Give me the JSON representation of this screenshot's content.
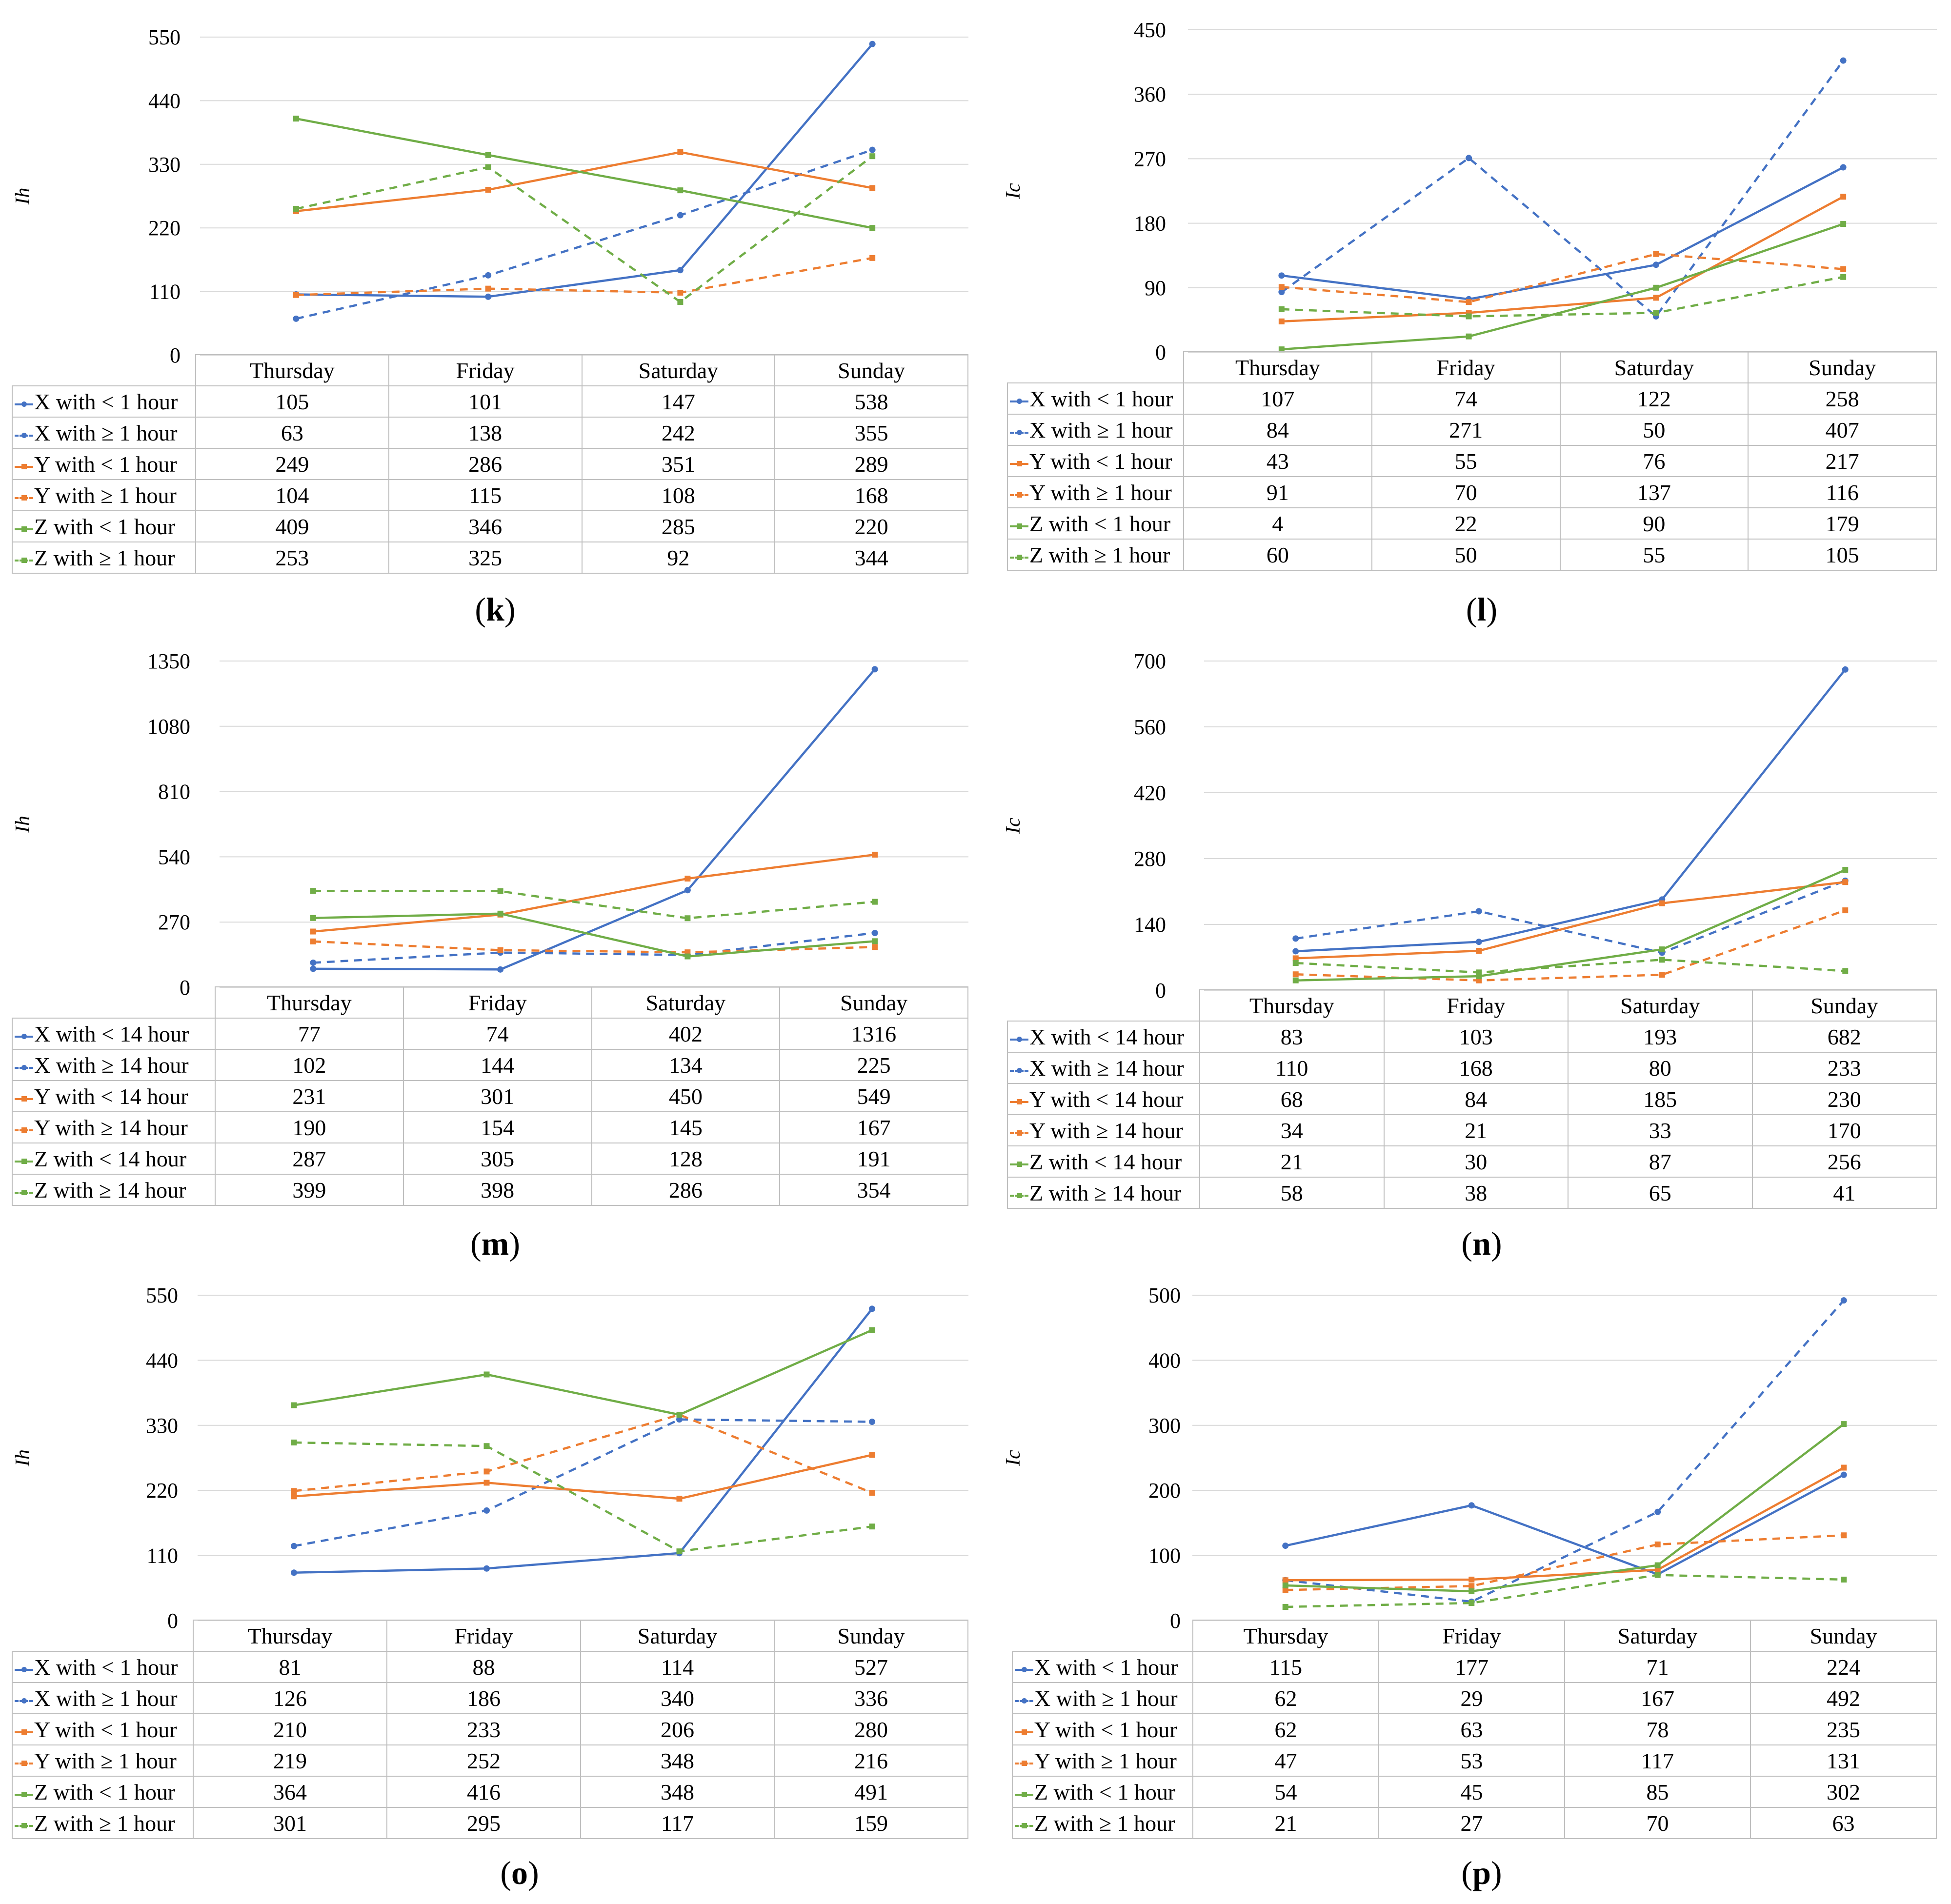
{
  "colors": {
    "X": "#4472c4",
    "Y": "#ed7d31",
    "Z": "#70ad47"
  },
  "chart_data": [
    {
      "type": "line",
      "caption_letter": "k",
      "ylabel": "Ih",
      "ylim": [
        0,
        550
      ],
      "yticks": [
        "0",
        "110",
        "220",
        "330",
        "440",
        "550"
      ],
      "categories": [
        "Thursday",
        "Friday",
        "Saturday",
        "Sunday"
      ],
      "series": [
        {
          "name": "X with < 1 hour",
          "color": "X",
          "style": "solid",
          "values": [
            105,
            101,
            147,
            538
          ]
        },
        {
          "name": "X with ≥ 1 hour",
          "color": "X",
          "style": "dashed",
          "values": [
            63,
            138,
            242,
            355
          ]
        },
        {
          "name": "Y with < 1 hour",
          "color": "Y",
          "style": "solid",
          "values": [
            249,
            286,
            351,
            289
          ]
        },
        {
          "name": "Y with ≥ 1 hour",
          "color": "Y",
          "style": "dashed",
          "values": [
            104,
            115,
            108,
            168
          ]
        },
        {
          "name": "Z with < 1 hour",
          "color": "Z",
          "style": "solid",
          "values": [
            409,
            346,
            285,
            220
          ]
        },
        {
          "name": "Z with ≥ 1 hour",
          "color": "Z",
          "style": "dashed",
          "values": [
            253,
            325,
            92,
            344
          ]
        }
      ]
    },
    {
      "type": "line",
      "caption_letter": "l",
      "ylabel": "Ic",
      "ylim": [
        0,
        450
      ],
      "yticks": [
        "0",
        "90",
        "180",
        "270",
        "360",
        "450"
      ],
      "categories": [
        "Thursday",
        "Friday",
        "Saturday",
        "Sunday"
      ],
      "series": [
        {
          "name": "X with < 1 hour",
          "color": "X",
          "style": "solid",
          "values": [
            107,
            74,
            122,
            258
          ]
        },
        {
          "name": "X with ≥ 1 hour",
          "color": "X",
          "style": "dashed",
          "values": [
            84,
            271,
            50,
            407
          ]
        },
        {
          "name": "Y with < 1 hour",
          "color": "Y",
          "style": "solid",
          "values": [
            43,
            55,
            76,
            217
          ]
        },
        {
          "name": "Y with ≥ 1 hour",
          "color": "Y",
          "style": "dashed",
          "values": [
            91,
            70,
            137,
            116
          ]
        },
        {
          "name": "Z with < 1 hour",
          "color": "Z",
          "style": "solid",
          "values": [
            4,
            22,
            90,
            179
          ]
        },
        {
          "name": "Z with ≥ 1 hour",
          "color": "Z",
          "style": "dashed",
          "values": [
            60,
            50,
            55,
            105
          ]
        }
      ]
    },
    {
      "type": "line",
      "caption_letter": "m",
      "ylabel": "Ih",
      "ylim": [
        0,
        1350
      ],
      "yticks": [
        "0",
        "270",
        "540",
        "810",
        "1080",
        "1350"
      ],
      "categories": [
        "Thursday",
        "Friday",
        "Saturday",
        "Sunday"
      ],
      "series": [
        {
          "name": "X with < 14 hour",
          "color": "X",
          "style": "solid",
          "values": [
            77,
            74,
            402,
            1316
          ]
        },
        {
          "name": "X with ≥ 14 hour",
          "color": "X",
          "style": "dashed",
          "values": [
            102,
            144,
            134,
            225
          ]
        },
        {
          "name": "Y with < 14 hour",
          "color": "Y",
          "style": "solid",
          "values": [
            231,
            301,
            450,
            549
          ]
        },
        {
          "name": "Y with ≥ 14 hour",
          "color": "Y",
          "style": "dashed",
          "values": [
            190,
            154,
            145,
            167
          ]
        },
        {
          "name": "Z with < 14 hour",
          "color": "Z",
          "style": "solid",
          "values": [
            287,
            305,
            128,
            191
          ]
        },
        {
          "name": "Z with ≥ 14 hour",
          "color": "Z",
          "style": "dashed",
          "values": [
            399,
            398,
            286,
            354
          ]
        }
      ]
    },
    {
      "type": "line",
      "caption_letter": "n",
      "ylabel": "Ic",
      "ylim": [
        0,
        700
      ],
      "yticks": [
        "0",
        "140",
        "280",
        "420",
        "560",
        "700"
      ],
      "categories": [
        "Thursday",
        "Friday",
        "Saturday",
        "Sunday"
      ],
      "series": [
        {
          "name": "X with < 14 hour",
          "color": "X",
          "style": "solid",
          "values": [
            83,
            103,
            193,
            682
          ]
        },
        {
          "name": "X with ≥ 14 hour",
          "color": "X",
          "style": "dashed",
          "values": [
            110,
            168,
            80,
            233
          ]
        },
        {
          "name": "Y with < 14 hour",
          "color": "Y",
          "style": "solid",
          "values": [
            68,
            84,
            185,
            230
          ]
        },
        {
          "name": "Y with ≥ 14 hour",
          "color": "Y",
          "style": "dashed",
          "values": [
            34,
            21,
            33,
            170
          ]
        },
        {
          "name": "Z with < 14 hour",
          "color": "Z",
          "style": "solid",
          "values": [
            21,
            30,
            87,
            256
          ]
        },
        {
          "name": "Z with ≥ 14 hour",
          "color": "Z",
          "style": "dashed",
          "values": [
            58,
            38,
            65,
            41
          ]
        }
      ]
    },
    {
      "type": "line",
      "caption_letter": "o",
      "ylabel": "Ih",
      "ylim": [
        0,
        550
      ],
      "yticks": [
        "0",
        "110",
        "220",
        "330",
        "440",
        "550"
      ],
      "categories": [
        "Thursday",
        "Friday",
        "Saturday",
        "Sunday"
      ],
      "series": [
        {
          "name": "X with < 1 hour",
          "color": "X",
          "style": "solid",
          "values": [
            81,
            88,
            114,
            527
          ]
        },
        {
          "name": "X with ≥ 1 hour",
          "color": "X",
          "style": "dashed",
          "values": [
            126,
            186,
            340,
            336
          ]
        },
        {
          "name": "Y with < 1 hour",
          "color": "Y",
          "style": "solid",
          "values": [
            210,
            233,
            206,
            280
          ]
        },
        {
          "name": "Y with ≥ 1 hour",
          "color": "Y",
          "style": "dashed",
          "values": [
            219,
            252,
            348,
            216
          ]
        },
        {
          "name": "Z with < 1 hour",
          "color": "Z",
          "style": "solid",
          "values": [
            364,
            416,
            348,
            491
          ]
        },
        {
          "name": "Z with ≥ 1 hour",
          "color": "Z",
          "style": "dashed",
          "values": [
            301,
            295,
            117,
            159
          ]
        }
      ]
    },
    {
      "type": "line",
      "caption_letter": "p",
      "ylabel": "Ic",
      "ylim": [
        0,
        500
      ],
      "yticks": [
        "0",
        "100",
        "200",
        "300",
        "400",
        "500"
      ],
      "categories": [
        "Thursday",
        "Friday",
        "Saturday",
        "Sunday"
      ],
      "series": [
        {
          "name": "X with < 1 hour",
          "color": "X",
          "style": "solid",
          "values": [
            115,
            177,
            71,
            224
          ]
        },
        {
          "name": "X with ≥ 1 hour",
          "color": "X",
          "style": "dashed",
          "values": [
            62,
            29,
            167,
            492
          ]
        },
        {
          "name": "Y with < 1 hour",
          "color": "Y",
          "style": "solid",
          "values": [
            62,
            63,
            78,
            235
          ]
        },
        {
          "name": "Y with ≥ 1 hour",
          "color": "Y",
          "style": "dashed",
          "values": [
            47,
            53,
            117,
            131
          ]
        },
        {
          "name": "Z with < 1 hour",
          "color": "Z",
          "style": "solid",
          "values": [
            54,
            45,
            85,
            302
          ]
        },
        {
          "name": "Z with ≥ 1 hour",
          "color": "Z",
          "style": "dashed",
          "values": [
            21,
            27,
            70,
            63
          ]
        }
      ]
    }
  ]
}
